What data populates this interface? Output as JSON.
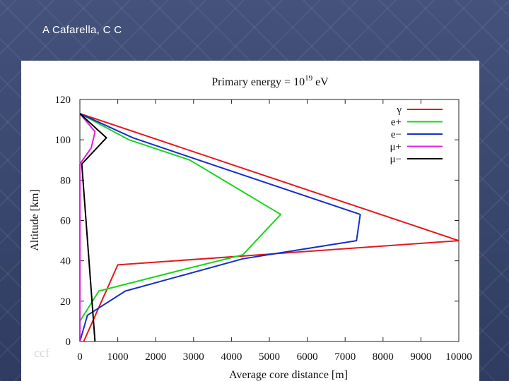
{
  "header": {
    "author": "A Cafarella, C C"
  },
  "watermark": "ccf",
  "chart_data": {
    "type": "line",
    "title_prefix": "Primary energy = 10",
    "title_exponent": "19",
    "title_suffix": " eV",
    "xlabel": "Average core distance [m]",
    "ylabel": "Altitude [km]",
    "xlim": [
      0,
      10000
    ],
    "ylim": [
      0,
      120
    ],
    "xticks": [
      0,
      1000,
      2000,
      3000,
      4000,
      5000,
      6000,
      7000,
      8000,
      9000,
      10000
    ],
    "yticks": [
      0,
      20,
      40,
      60,
      80,
      100,
      120
    ],
    "grid": false,
    "legend_position": "top-right",
    "series": [
      {
        "name": "γ",
        "color": "#e41a1c",
        "points": [
          [
            0,
            113
          ],
          [
            10000,
            50
          ],
          [
            1000,
            38
          ],
          [
            100,
            0
          ]
        ]
      },
      {
        "name": "e+",
        "color": "#19d619",
        "points": [
          [
            0,
            113
          ],
          [
            1300,
            100
          ],
          [
            2900,
            90
          ],
          [
            5300,
            63
          ],
          [
            4300,
            43
          ],
          [
            2800,
            36
          ],
          [
            500,
            25
          ],
          [
            0,
            10
          ]
        ]
      },
      {
        "name": "e−",
        "color": "#1530c8",
        "points": [
          [
            0,
            113
          ],
          [
            1400,
            101
          ],
          [
            3600,
            87
          ],
          [
            7400,
            63
          ],
          [
            7300,
            50
          ],
          [
            4300,
            41
          ],
          [
            1200,
            25
          ],
          [
            200,
            13
          ],
          [
            0,
            0
          ]
        ]
      },
      {
        "name": "μ+",
        "color": "#e020e0",
        "points": [
          [
            0,
            113
          ],
          [
            400,
            104
          ],
          [
            300,
            96
          ],
          [
            0,
            88
          ],
          [
            0,
            0
          ]
        ]
      },
      {
        "name": "μ−",
        "color": "#000000",
        "points": [
          [
            0,
            113
          ],
          [
            700,
            101
          ],
          [
            50,
            88
          ],
          [
            400,
            0
          ]
        ]
      }
    ]
  }
}
